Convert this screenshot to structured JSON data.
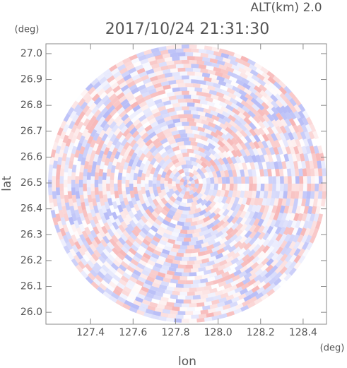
{
  "chart_data": {
    "type": "radar-image",
    "title": "2017/10/24 21:31:30",
    "annotation": "ALT(km) 2.0",
    "x_label": "lon",
    "x_unit": "(deg)",
    "y_label": "lat",
    "y_unit": "(deg)",
    "xlim": [
      127.19,
      128.51
    ],
    "ylim": [
      25.954,
      27.038
    ],
    "xticks": [
      127.4,
      127.6,
      127.8,
      {
        "value": 128.0,
        "label": "128.0"
      },
      128.2,
      128.4
    ],
    "yticks": [
      {
        "value": 26.0,
        "label": "26.0"
      },
      26.1,
      26.2,
      26.3,
      26.4,
      26.5,
      26.6,
      26.7,
      26.8,
      26.9,
      {
        "value": 27.0,
        "label": "27.0"
      }
    ]
  }
}
